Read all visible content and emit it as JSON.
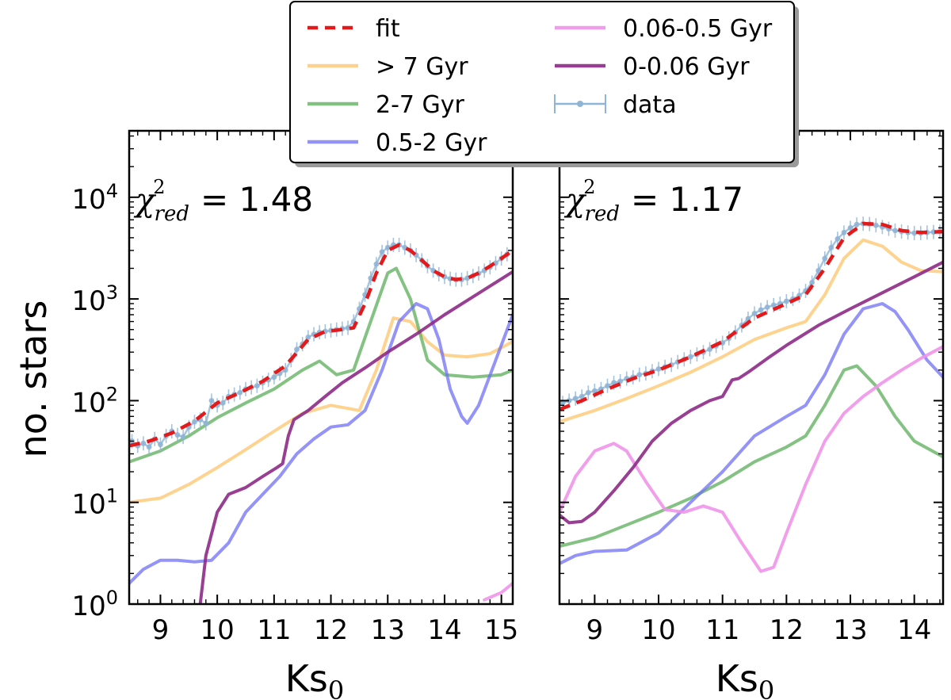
{
  "colors": {
    "fit": "#e31a1c",
    "gt7": "#fdc46a",
    "g2_7": "#5aad5a",
    "g05_2": "#6f6ff5",
    "g006_05": "#ef93ea",
    "g0_006": "#8d2a87",
    "data": "#8fb5d6"
  },
  "ylabel": "no. stars",
  "legend": {
    "entries": [
      {
        "key": "fit",
        "label": "fit"
      },
      {
        "key": "gt7",
        "label": "> 7 Gyr"
      },
      {
        "key": "g2_7",
        "label": "2-7 Gyr"
      },
      {
        "key": "g05_2",
        "label": "0.5-2 Gyr"
      },
      {
        "key": "g006_05",
        "label": "0.06-0.5 Gyr"
      },
      {
        "key": "g0_006",
        "label": "0-0.06 Gyr"
      },
      {
        "key": "data",
        "label": "data"
      }
    ]
  },
  "chart_data": [
    {
      "type": "line",
      "yscale": "log",
      "xlabel_main": "Ks",
      "xlabel_sub": "0",
      "ylabel": "no. stars",
      "xlim": [
        8.45,
        15.2
      ],
      "ylim": [
        1,
        45000
      ],
      "xticks": [
        9,
        10,
        11,
        12,
        13,
        14,
        15
      ],
      "yticks": [
        {
          "base": "10",
          "exp": "0",
          "value": 1
        },
        {
          "base": "10",
          "exp": "1",
          "value": 10
        },
        {
          "base": "10",
          "exp": "2",
          "value": 100
        },
        {
          "base": "10",
          "exp": "3",
          "value": 1000
        },
        {
          "base": "10",
          "exp": "4",
          "value": 10000
        }
      ],
      "chi_label": "χ",
      "chi_sup": "2",
      "chi_sub": "red",
      "chi_eq": "=",
      "chi_value": "1.48",
      "series": [
        {
          "key": "gt7",
          "name": "> 7 Gyr",
          "x": [
            8.45,
            9.0,
            9.5,
            10.0,
            10.5,
            11.0,
            11.5,
            12.0,
            12.5,
            12.8,
            13.1,
            13.4,
            13.7,
            14.0,
            14.4,
            14.8,
            15.2
          ],
          "y": [
            10,
            11,
            15,
            22,
            33,
            50,
            75,
            90,
            80,
            200,
            650,
            600,
            380,
            280,
            270,
            290,
            380
          ]
        },
        {
          "key": "g2_7",
          "name": "2-7 Gyr",
          "x": [
            8.45,
            9.0,
            9.5,
            10.0,
            10.5,
            11.0,
            11.5,
            11.8,
            12.1,
            12.4,
            12.7,
            13.0,
            13.15,
            13.4,
            13.7,
            14.0,
            14.5,
            15.0,
            15.2
          ],
          "y": [
            25,
            32,
            45,
            68,
            95,
            130,
            200,
            245,
            180,
            200,
            600,
            1800,
            2000,
            1000,
            250,
            180,
            170,
            180,
            200
          ]
        },
        {
          "key": "g05_2",
          "name": "0.5-2 Gyr",
          "x": [
            8.45,
            8.7,
            9.0,
            9.3,
            9.6,
            9.9,
            10.2,
            10.5,
            10.8,
            11.1,
            11.4,
            11.7,
            12.0,
            12.3,
            12.6,
            12.9,
            13.2,
            13.5,
            13.7,
            13.9,
            14.1,
            14.3,
            14.4,
            14.6,
            14.9,
            15.2
          ],
          "y": [
            1.6,
            2.2,
            2.7,
            2.7,
            2.6,
            2.7,
            4,
            8,
            12,
            18,
            30,
            42,
            55,
            58,
            80,
            200,
            600,
            900,
            800,
            400,
            130,
            70,
            60,
            90,
            250,
            700
          ]
        },
        {
          "key": "g0_006",
          "name": "0-0.06 Gyr",
          "x": [
            9.68,
            9.8,
            10.0,
            10.2,
            10.5,
            10.8,
            11.05,
            11.15,
            11.25,
            11.35,
            11.6,
            11.9,
            12.2,
            12.6,
            13.0,
            13.5,
            14.0,
            14.5,
            15.2
          ],
          "y": [
            0.8,
            3,
            8,
            12,
            14,
            18,
            22,
            24,
            45,
            65,
            80,
            110,
            150,
            210,
            300,
            450,
            700,
            1050,
            1850
          ]
        },
        {
          "key": "g006_05",
          "name": "0.06-0.5 Gyr",
          "x": [
            14.7,
            15.0,
            15.2
          ],
          "y": [
            1.1,
            1.3,
            1.6
          ]
        },
        {
          "key": "fit",
          "name": "fit",
          "x": [
            8.45,
            8.8,
            9.2,
            9.6,
            10.0,
            10.4,
            10.8,
            11.2,
            11.6,
            11.9,
            12.2,
            12.4,
            12.6,
            12.8,
            13.0,
            13.2,
            13.4,
            13.6,
            13.8,
            14.0,
            14.2,
            14.4,
            14.6,
            14.8,
            15.0,
            15.2
          ],
          "y": [
            36,
            40,
            48,
            63,
            95,
            120,
            155,
            220,
            400,
            480,
            500,
            520,
            900,
            1800,
            3000,
            3400,
            3000,
            2400,
            1900,
            1650,
            1550,
            1600,
            1800,
            2100,
            2500,
            3000
          ]
        },
        {
          "key": "data",
          "name": "data",
          "x": [
            8.5,
            8.6,
            8.7,
            8.8,
            8.9,
            9.0,
            9.1,
            9.2,
            9.3,
            9.4,
            9.5,
            9.6,
            9.7,
            9.8,
            9.9,
            10.0,
            10.1,
            10.2,
            10.3,
            10.4,
            10.5,
            10.6,
            10.7,
            10.8,
            10.9,
            11.0,
            11.1,
            11.2,
            11.3,
            11.4,
            11.5,
            11.6,
            11.7,
            11.8,
            11.9,
            12.0,
            12.1,
            12.2,
            12.3,
            12.4,
            12.5,
            12.6,
            12.7,
            12.8,
            12.9,
            13.0,
            13.1,
            13.2,
            13.3,
            13.4,
            13.5,
            13.6,
            13.7,
            13.8,
            13.9,
            14.0,
            14.1,
            14.2,
            14.3,
            14.4,
            14.5,
            14.6,
            14.7,
            14.8,
            14.9,
            15.0,
            15.1
          ],
          "y": [
            40,
            36,
            38,
            35,
            42,
            37,
            45,
            50,
            46,
            44,
            55,
            62,
            65,
            60,
            100,
            90,
            95,
            110,
            115,
            120,
            130,
            135,
            140,
            150,
            160,
            170,
            185,
            200,
            250,
            320,
            360,
            420,
            450,
            470,
            480,
            490,
            500,
            510,
            520,
            600,
            800,
            1100,
            1600,
            2200,
            2900,
            3200,
            3400,
            3400,
            3200,
            3000,
            2700,
            2400,
            2100,
            1900,
            1750,
            1650,
            1580,
            1550,
            1550,
            1600,
            1680,
            1780,
            1900,
            2050,
            2250,
            2500,
            2750
          ]
        }
      ]
    },
    {
      "type": "line",
      "yscale": "log",
      "xlabel_main": "Ks",
      "xlabel_sub": "0",
      "ylabel": "",
      "xlim": [
        8.45,
        14.45
      ],
      "ylim": [
        1,
        45000
      ],
      "xticks": [
        9,
        10,
        11,
        12,
        13,
        14
      ],
      "yticks": [],
      "chi_label": "χ",
      "chi_sup": "2",
      "chi_sub": "red",
      "chi_eq": "=",
      "chi_value": "1.17",
      "series": [
        {
          "key": "gt7",
          "name": "> 7 Gyr",
          "x": [
            8.45,
            9.0,
            9.5,
            10.0,
            10.5,
            11.0,
            11.5,
            12.0,
            12.3,
            12.6,
            12.9,
            13.2,
            13.5,
            13.8,
            14.1,
            14.45
          ],
          "y": [
            62,
            80,
            105,
            140,
            190,
            270,
            400,
            520,
            600,
            1100,
            2500,
            3800,
            3300,
            2300,
            1900,
            1850
          ]
        },
        {
          "key": "g2_7",
          "name": "2-7 Gyr",
          "x": [
            8.45,
            9.0,
            9.5,
            10.0,
            10.5,
            11.0,
            11.5,
            12.0,
            12.3,
            12.6,
            12.9,
            13.1,
            13.4,
            13.7,
            14.0,
            14.45
          ],
          "y": [
            3.7,
            4.5,
            6,
            8,
            11,
            16,
            25,
            35,
            45,
            90,
            200,
            220,
            140,
            70,
            40,
            28
          ]
        },
        {
          "key": "g05_2",
          "name": "0.5-2 Gyr",
          "x": [
            8.45,
            8.7,
            9.0,
            9.5,
            10.0,
            10.5,
            11.0,
            11.5,
            12.0,
            12.3,
            12.6,
            12.9,
            13.2,
            13.5,
            13.7,
            13.9,
            14.2,
            14.45
          ],
          "y": [
            2.5,
            3.0,
            3.3,
            3.4,
            5,
            10,
            20,
            45,
            70,
            90,
            180,
            450,
            800,
            900,
            750,
            500,
            250,
            170
          ]
        },
        {
          "key": "g006_05",
          "name": "0.06-0.5 Gyr",
          "x": [
            8.45,
            8.7,
            9.0,
            9.3,
            9.5,
            9.8,
            10.1,
            10.4,
            10.7,
            11.0,
            11.3,
            11.6,
            11.8,
            12.0,
            12.3,
            12.6,
            12.9,
            13.2,
            13.5,
            13.8,
            14.1,
            14.45
          ],
          "y": [
            8,
            18,
            32,
            38,
            32,
            16,
            8.5,
            8,
            9.2,
            8,
            4,
            2.1,
            2.3,
            5,
            15,
            40,
            75,
            110,
            150,
            200,
            260,
            340
          ]
        },
        {
          "key": "g0_006",
          "name": "0-0.06 Gyr",
          "x": [
            8.45,
            8.6,
            8.8,
            9.0,
            9.3,
            9.6,
            9.9,
            10.2,
            10.5,
            10.8,
            11.0,
            11.15,
            11.25,
            11.4,
            11.7,
            12.0,
            12.5,
            13.0,
            13.5,
            14.0,
            14.45
          ],
          "y": [
            7.5,
            6.3,
            6.5,
            8,
            13,
            22,
            40,
            60,
            80,
            100,
            110,
            160,
            165,
            190,
            260,
            350,
            550,
            800,
            1150,
            1650,
            2300
          ]
        },
        {
          "key": "fit",
          "name": "fit",
          "x": [
            8.45,
            8.8,
            9.2,
            9.6,
            10.0,
            10.5,
            11.0,
            11.5,
            12.0,
            12.3,
            12.6,
            12.9,
            13.2,
            13.5,
            13.8,
            14.1,
            14.45
          ],
          "y": [
            82,
            100,
            130,
            165,
            200,
            270,
            380,
            650,
            900,
            1100,
            2000,
            4000,
            5500,
            5400,
            4700,
            4500,
            4600
          ]
        },
        {
          "key": "data",
          "name": "data",
          "x": [
            8.5,
            8.6,
            8.7,
            8.8,
            8.9,
            9.0,
            9.1,
            9.2,
            9.3,
            9.4,
            9.5,
            9.6,
            9.7,
            9.8,
            9.9,
            10.0,
            10.1,
            10.2,
            10.3,
            10.4,
            10.5,
            10.6,
            10.7,
            10.8,
            10.9,
            11.0,
            11.1,
            11.2,
            11.3,
            11.4,
            11.5,
            11.6,
            11.7,
            11.8,
            11.9,
            12.0,
            12.1,
            12.2,
            12.3,
            12.4,
            12.5,
            12.6,
            12.7,
            12.8,
            12.9,
            13.0,
            13.1,
            13.2,
            13.3,
            13.4,
            13.5,
            13.6,
            13.7,
            13.8,
            13.9,
            14.0,
            14.1,
            14.2,
            14.3,
            14.4
          ],
          "y": [
            95,
            100,
            105,
            110,
            120,
            125,
            130,
            140,
            150,
            155,
            165,
            170,
            180,
            185,
            195,
            205,
            215,
            225,
            240,
            255,
            270,
            285,
            300,
            320,
            345,
            370,
            410,
            470,
            550,
            640,
            720,
            780,
            830,
            870,
            900,
            950,
            1000,
            1080,
            1200,
            1450,
            1900,
            2500,
            3200,
            3900,
            4500,
            5000,
            5400,
            5500,
            5450,
            5300,
            5100,
            4900,
            4700,
            4600,
            4500,
            4450,
            4450,
            4500,
            4550,
            4600
          ]
        }
      ]
    }
  ]
}
